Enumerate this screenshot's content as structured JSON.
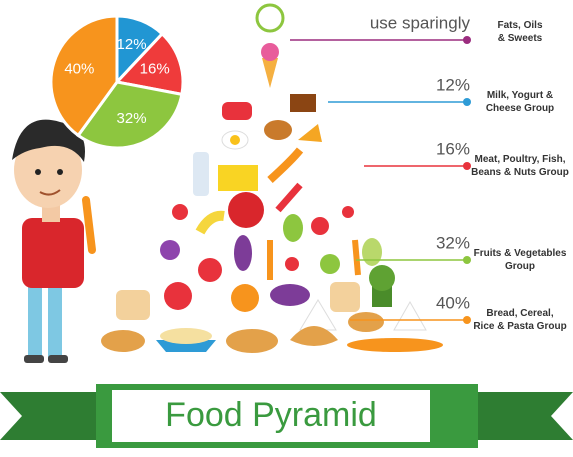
{
  "title": "Food Pyramid",
  "chart_data": {
    "type": "pie",
    "values": [
      12,
      16,
      32,
      40
    ],
    "value_labels": [
      "12%",
      "16%",
      "32%",
      "40%"
    ],
    "colors": [
      "#2196d3",
      "#ef3b3b",
      "#8dc63f",
      "#f7941d"
    ]
  },
  "levels": [
    {
      "amount": "use sparingly",
      "group": [
        "Fats, Oils",
        "& Sweets"
      ],
      "color": "#9b2d7f"
    },
    {
      "amount": "12%",
      "group": [
        "Milk, Yogurt &",
        "Cheese Group"
      ],
      "color": "#2e9bd6"
    },
    {
      "amount": "16%",
      "group": [
        "Meat, Poultry, Fish,",
        "Beans & Nuts Group"
      ],
      "color": "#e8323c"
    },
    {
      "amount": "32%",
      "group": [
        "Fruits & Vegetables",
        "Group"
      ],
      "color": "#8dc63f"
    },
    {
      "amount": "40%",
      "group": [
        "Bread, Cereal,",
        "Rice & Pasta Group"
      ],
      "color": "#f7941d"
    }
  ]
}
